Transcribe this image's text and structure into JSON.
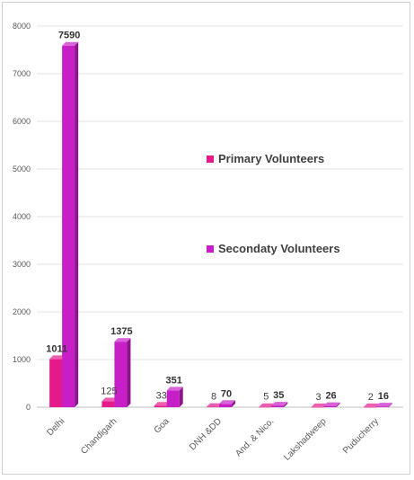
{
  "chart_data": {
    "type": "bar",
    "categories": [
      "Delhi",
      "Chandigarh",
      "Goa",
      "DNH &DD",
      "And. & Nico.",
      "Lakshadweep",
      "Puducherry"
    ],
    "series": [
      {
        "name": "Primary Volunteers",
        "values": [
          1011,
          125,
          33,
          8,
          5,
          3,
          2
        ],
        "color": "#e6198c"
      },
      {
        "name": "Secondaty Volunteers",
        "values": [
          7590,
          1375,
          351,
          70,
          35,
          26,
          16
        ],
        "color": "#c81ec8"
      }
    ],
    "y_ticks": [
      0,
      1000,
      2000,
      3000,
      4000,
      5000,
      6000,
      7000,
      8000
    ],
    "ylim": [
      0,
      8000
    ],
    "grid": true,
    "legend_position": "center-right"
  }
}
